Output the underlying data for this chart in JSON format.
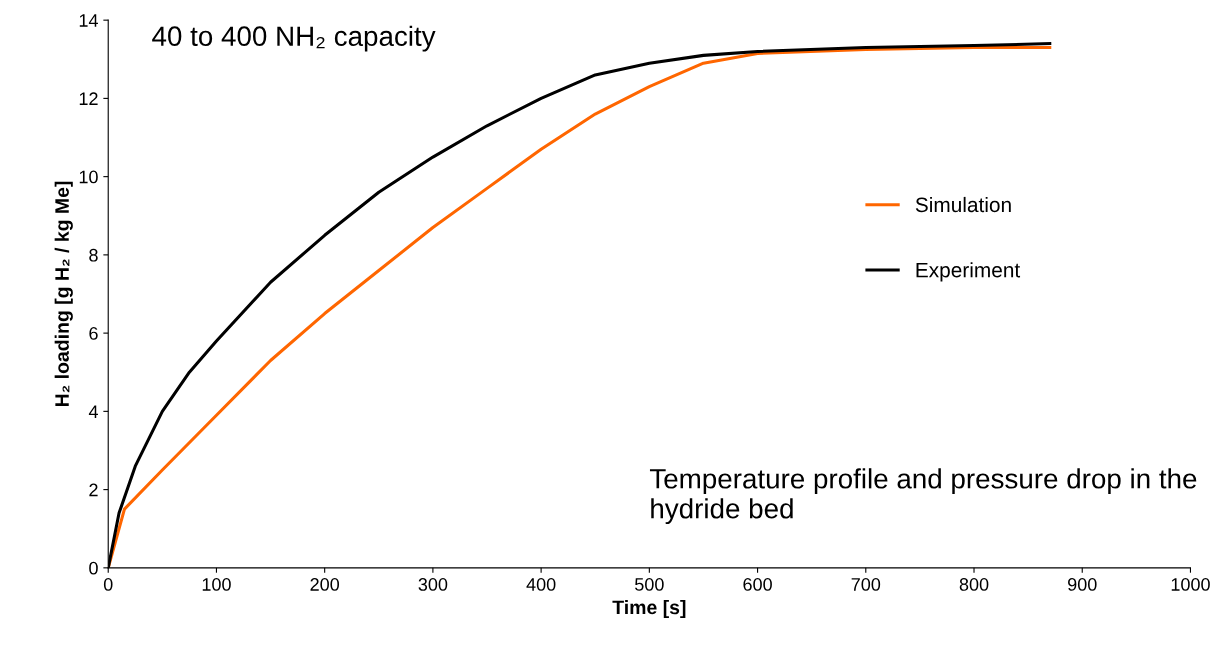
{
  "chart_data": {
    "type": "line",
    "xlabel": "Time [s]",
    "ylabel": "H₂ loading [g H₂ / kg Me]",
    "annotations": [
      "40 to 400 NH₂ capacity",
      "Temperature profile and pressure drop in the hydride bed"
    ],
    "xlim": [
      0,
      1000
    ],
    "xticks": [
      0,
      100,
      200,
      300,
      400,
      500,
      600,
      700,
      800,
      900,
      1000
    ],
    "ylim": [
      0,
      14
    ],
    "yticks": [
      0,
      2,
      4,
      6,
      8,
      10,
      12,
      14
    ],
    "grid": false,
    "legend": "right",
    "marker": "none",
    "line_style": "solid",
    "series": [
      {
        "name": "Simulation",
        "color": "#ff6600",
        "x": [
          0,
          15,
          50,
          100,
          150,
          200,
          250,
          300,
          350,
          400,
          450,
          500,
          550,
          600,
          700,
          800,
          870
        ],
        "values": [
          0,
          1.5,
          2.5,
          3.9,
          5.3,
          6.5,
          7.6,
          8.7,
          9.7,
          10.7,
          11.6,
          12.3,
          12.9,
          13.15,
          13.25,
          13.3,
          13.3
        ]
      },
      {
        "name": "Experiment",
        "color": "#000000",
        "x": [
          0,
          10,
          25,
          50,
          75,
          100,
          150,
          200,
          250,
          300,
          350,
          400,
          450,
          500,
          550,
          600,
          700,
          800,
          870
        ],
        "values": [
          0,
          1.4,
          2.6,
          4.0,
          5.0,
          5.8,
          7.3,
          8.5,
          9.6,
          10.5,
          11.3,
          12.0,
          12.6,
          12.9,
          13.1,
          13.2,
          13.3,
          13.35,
          13.4
        ]
      }
    ]
  }
}
